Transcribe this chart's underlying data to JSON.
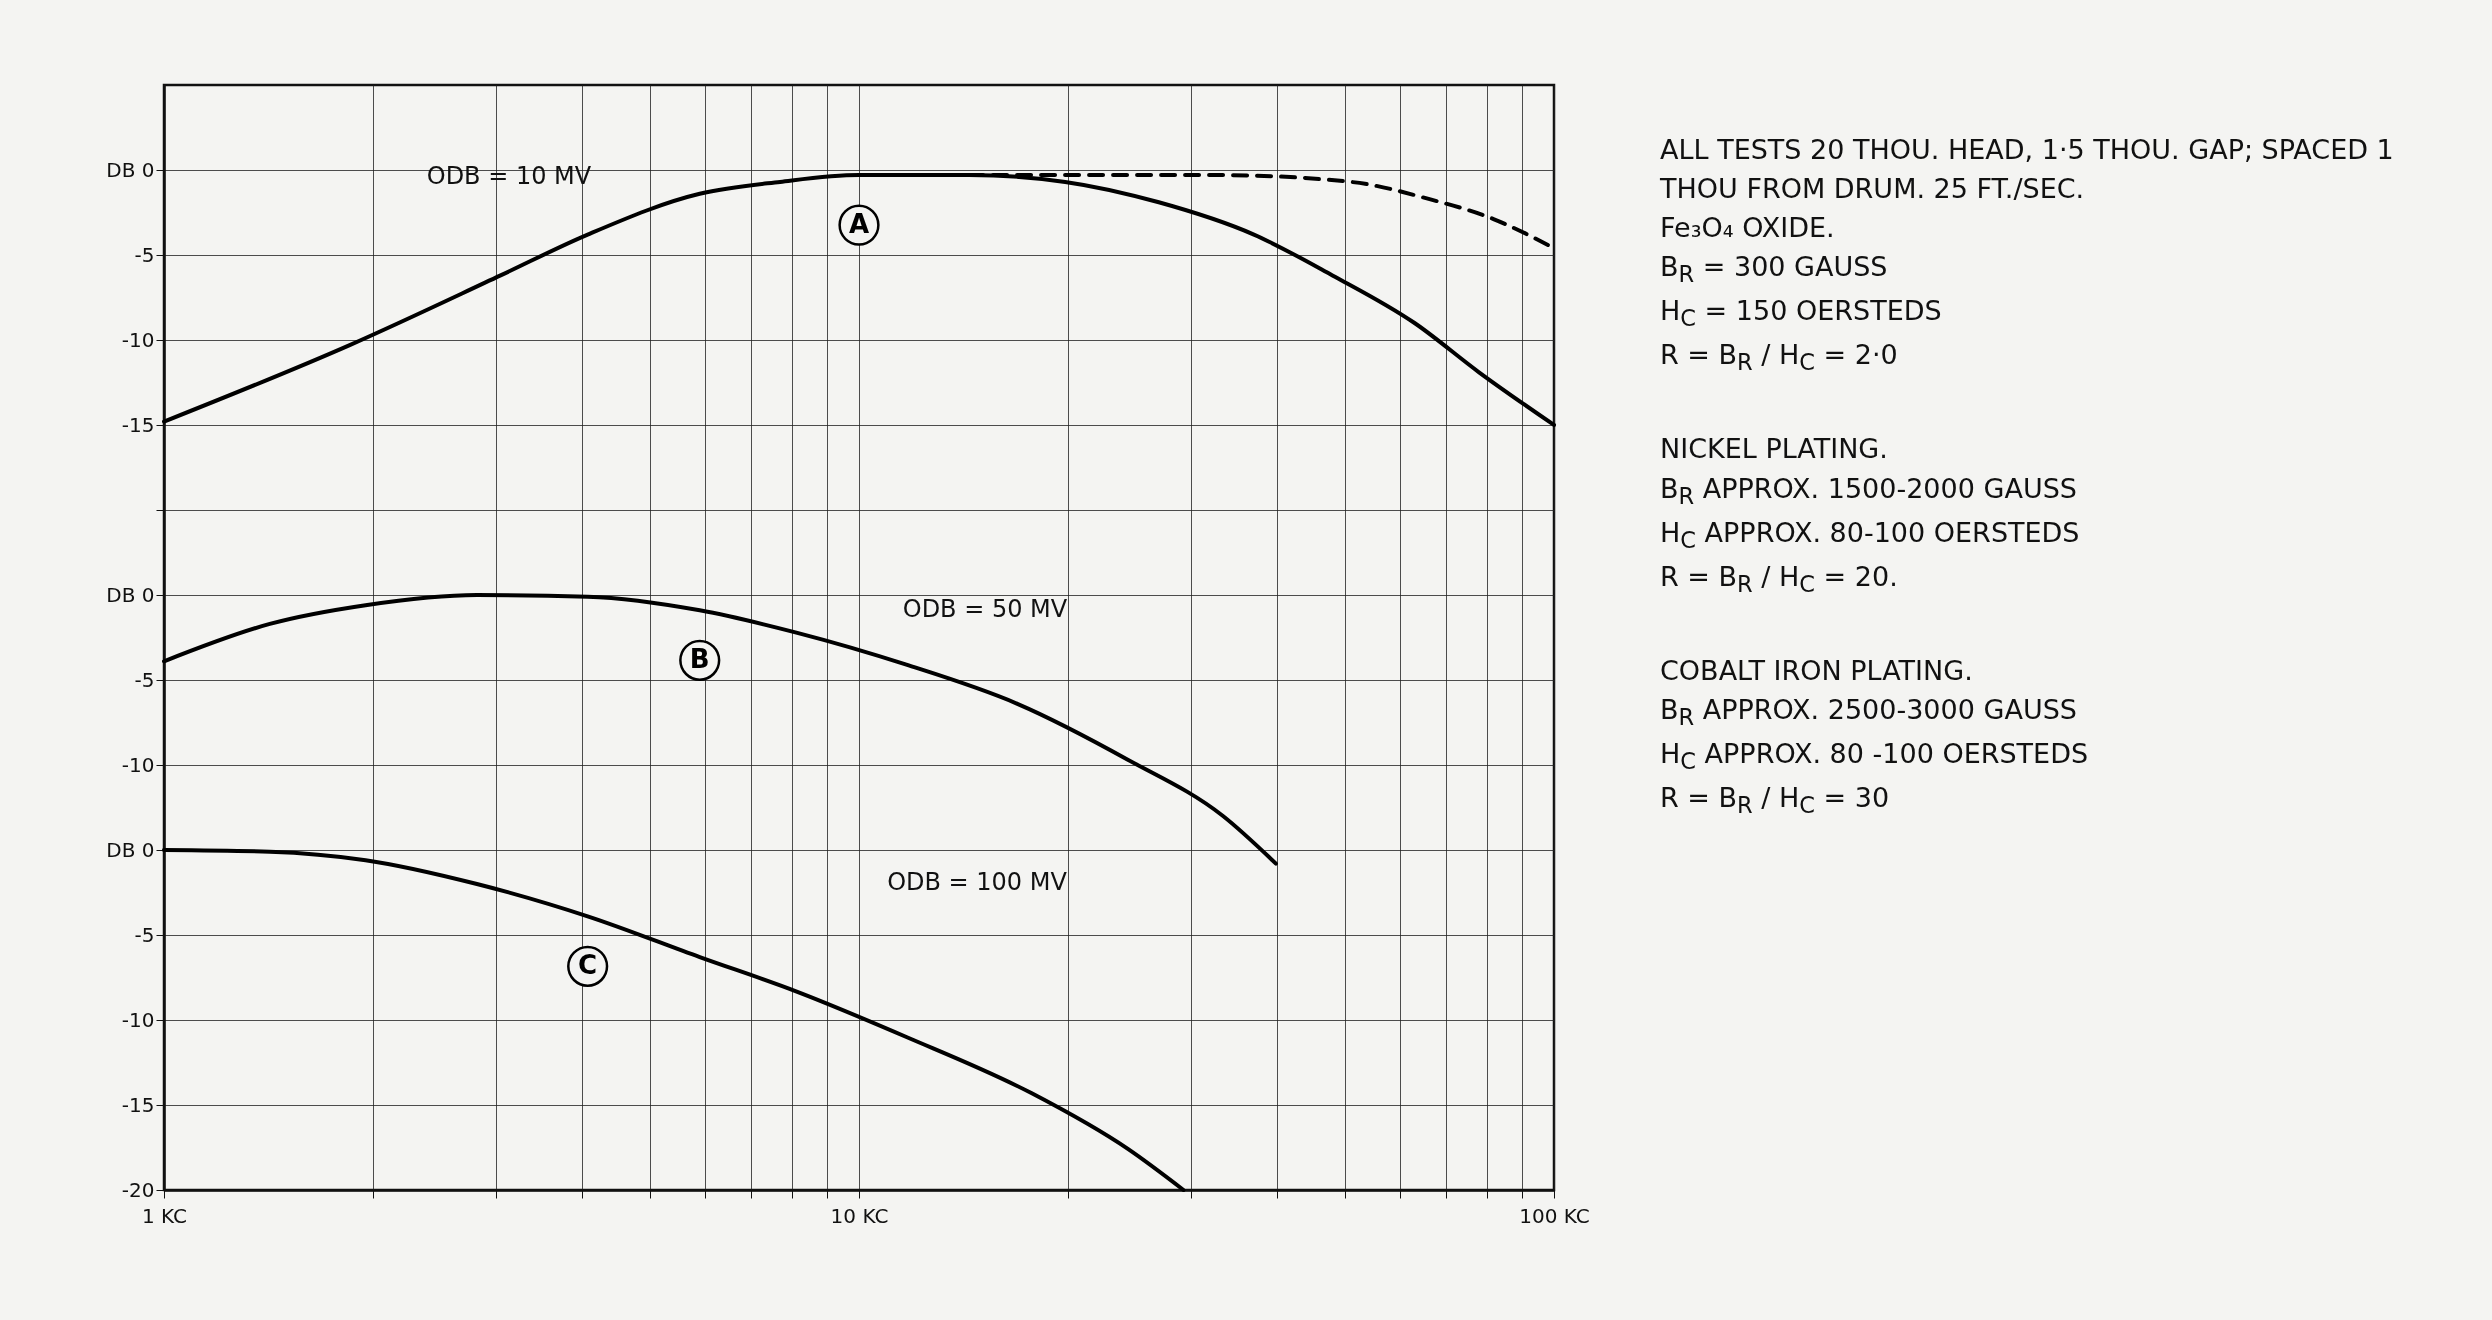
{
  "chart_data": {
    "type": "line",
    "log": "x",
    "grid": true,
    "marker": "none",
    "line_style": "solid",
    "xlim": [
      1,
      100
    ],
    "xticks": [
      {
        "value": 1,
        "label": "1 KC"
      },
      {
        "value": 2,
        "label": null
      },
      {
        "value": 3,
        "label": null
      },
      {
        "value": 4,
        "label": null
      },
      {
        "value": 5,
        "label": null
      },
      {
        "value": 6,
        "label": null
      },
      {
        "value": 7,
        "label": null
      },
      {
        "value": 8,
        "label": null
      },
      {
        "value": 9,
        "label": null
      },
      {
        "value": 10,
        "label": "10 KC"
      },
      {
        "value": 20,
        "label": null
      },
      {
        "value": 30,
        "label": null
      },
      {
        "value": 40,
        "label": null
      },
      {
        "value": 50,
        "label": null
      },
      {
        "value": 60,
        "label": null
      },
      {
        "value": 70,
        "label": null
      },
      {
        "value": 80,
        "label": null
      },
      {
        "value": 90,
        "label": null
      },
      {
        "value": 100,
        "label": "100 KC"
      }
    ],
    "ylim": [
      -60,
      5
    ],
    "yticks": [
      {
        "value": 0,
        "label": "DB 0"
      },
      -5,
      -10,
      -15,
      {
        "value": -20,
        "label": null
      }
    ],
    "y2lim": [
      -35,
      30
    ],
    "y2ticks": [
      {
        "value": 0,
        "label": "DB 0"
      },
      -5,
      -10
    ],
    "y3lim": [
      -20,
      45
    ],
    "y3ticks": [
      {
        "value": 0,
        "label": "DB 0"
      },
      -5,
      -10,
      -15,
      -20
    ],
    "series": [
      {
        "name": "A",
        "color": "#000000",
        "x": [
          1,
          1.85,
          3.05,
          4.07,
          5.9,
          7.7,
          10,
          14.4,
          19.8,
          27,
          37,
          48,
          63,
          78,
          100
        ],
        "values": [
          -14.8,
          -10.3,
          -6.2,
          -3.8,
          -1.4,
          -0.7,
          -0.3,
          -0.3,
          -0.7,
          -1.9,
          -3.8,
          -6.2,
          -9,
          -11.9,
          -15
        ]
      },
      {
        "color": "#000000",
        "line_style": "dashed",
        "x": [
          14.4,
          33,
          51,
          66,
          82,
          100
        ],
        "values": [
          -0.3,
          -0.3,
          -0.7,
          -1.7,
          -2.9,
          -4.6
        ]
      },
      {
        "name": "B",
        "color": "#000000",
        "axis": "y2",
        "x": [
          1,
          1.42,
          1.95,
          2.82,
          4.07,
          5.9,
          8.1,
          11.7,
          16.9,
          24.4,
          33.4,
          39.8
        ],
        "values": [
          -3.9,
          -1.7,
          -0.6,
          0,
          -0.1,
          -0.9,
          -2.2,
          -4.1,
          -6.4,
          -9.7,
          -13,
          -15.8
        ]
      },
      {
        "name": "C",
        "color": "#000000",
        "axis": "y3",
        "x": [
          1,
          1.42,
          1.95,
          2.82,
          4.07,
          5.9,
          8.1,
          11.7,
          17.7,
          24.4,
          29.3
        ],
        "values": [
          0,
          -0.1,
          -0.6,
          -2,
          -3.9,
          -6.3,
          -8.3,
          -11,
          -14.3,
          -17.6,
          -20
        ]
      }
    ],
    "annotations": [
      "ODB = 10 MV",
      "ODB = 50 MV",
      "ODB = 100 MV",
      "ALL TESTS 20 THOU. HEAD, 1·5 THOU. GAP; SPACED 1 THOU FROM DRUM. 25 FT./SEC.",
      "Fe₃O₄ OXIDE.",
      "B$_{R}$ = 300 GAUSS",
      "H$_{C}$ = 150 OERSTEDS",
      "R = B$_{R}$ / H$_{C}$ = 2·0",
      "NICKEL PLATING.",
      "B$_{R}$ APPROX. 1500-2000 GAUSS",
      "H$_{C}$ APPROX. 80-100 OERSTEDS",
      "R = B$_{R}$ / H$_{C}$ = 20.",
      "COBALT IRON PLATING.",
      "B$_{R}$ APPROX. 2500-3000 GAUSS",
      "H$_{C}$ APPROX. 80 -100 OERSTEDS",
      "R = B$_{R}$ / H$_{C}$ = 30"
    ]
  }
}
